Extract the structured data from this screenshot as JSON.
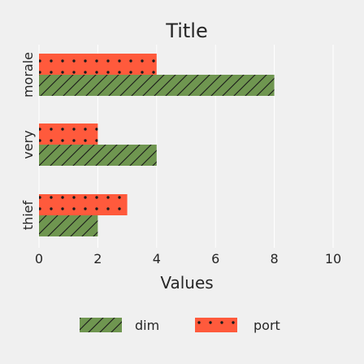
{
  "chart_data": {
    "type": "bar",
    "orientation": "horizontal",
    "title": "Title",
    "xlabel": "Values",
    "ylabel": "",
    "xlim": [
      0,
      10
    ],
    "x_ticks": [
      "0",
      "2",
      "4",
      "6",
      "8",
      "10"
    ],
    "categories": [
      "thief",
      "very",
      "morale"
    ],
    "series": [
      {
        "name": "dim",
        "values": [
          2,
          4,
          8
        ],
        "color": "#6f9650",
        "pattern": "diagonal-hatch"
      },
      {
        "name": "port",
        "values": [
          3,
          2,
          4
        ],
        "color": "#ff5a3c",
        "pattern": "dots"
      }
    ],
    "grid": true,
    "legend_placement": "bottom"
  }
}
